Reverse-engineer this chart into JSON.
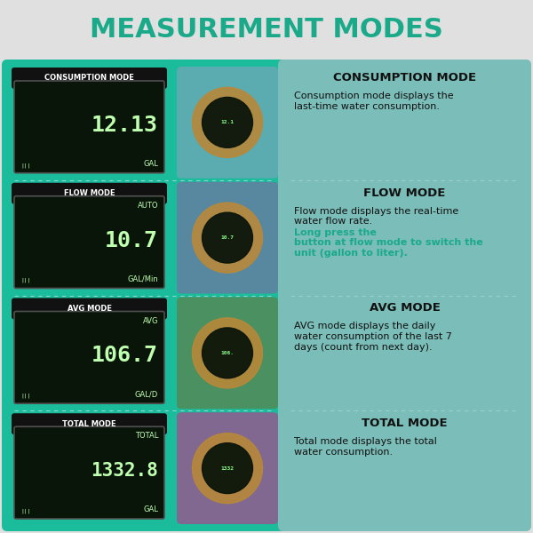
{
  "bg_color": "#e0e0e0",
  "title": "MEASUREMENT MODES",
  "title_color": "#1aaa8a",
  "title_fontsize": 22,
  "left_panel_color": "#1abc9c",
  "mid_panel_color": "#1abc9c",
  "right_panel_color": "#7bbdb8",
  "modes": [
    {
      "label": "CONSUMPTION MODE",
      "display_top": "",
      "display_value": "12.13",
      "display_unit": "GAL",
      "right_title": "CONSUMPTION MODE",
      "right_text_normal": "Consumption mode displays the\nlast-time water consumption.",
      "right_text_highlight": ""
    },
    {
      "label": "FLOW MODE",
      "display_top": "AUTO",
      "display_value": "10.7",
      "display_unit": "GAL/Min",
      "right_title": "FLOW MODE",
      "right_text_normal": "Flow mode displays the real-time\nwater flow rate. ",
      "right_text_highlight": "Long press the\nbutton at flow mode to switch the\nunit (gallon to liter)."
    },
    {
      "label": "AVG MODE",
      "display_top": "AVG",
      "display_value": "106.7",
      "display_unit": "GAL/D",
      "right_title": "AVG MODE",
      "right_text_normal": "AVG mode displays the daily\nwater consumption of the last 7\ndays (count from next day).",
      "right_text_highlight": ""
    },
    {
      "label": "TOTAL MODE",
      "display_top": "TOTAL",
      "display_value": "1332.8",
      "display_unit": "GAL",
      "right_title": "TOTAL MODE",
      "right_text_normal": "Total mode displays the total\nwater consumption.",
      "right_text_highlight": ""
    }
  ],
  "img_colors": [
    "#5aacb0",
    "#5888a0",
    "#4a9060",
    "#806890"
  ],
  "label_bg": "#111111",
  "label_text": "#ffffff",
  "display_bg": "#0a150a",
  "display_text": "#c0ffb0",
  "display_border": "#555555",
  "sep_color": "#aadddd"
}
